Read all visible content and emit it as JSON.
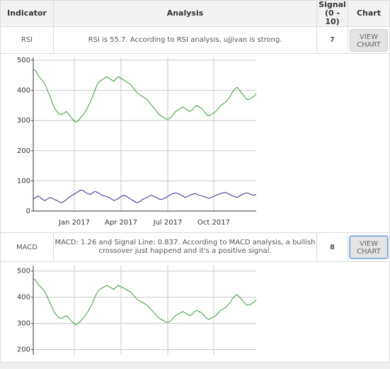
{
  "table": {
    "headers": {
      "indicator": "Indicator",
      "analysis": "Analysis",
      "signal_line1": "Signal",
      "signal_line2": "(0 - 10)",
      "chart": "Chart"
    },
    "rows": [
      {
        "indicator": "RSI",
        "analysis": "RSI is 55.7. According to RSI analysis, ujjivan is strong.",
        "signal": "7",
        "button_label": "VIEW\nCHART"
      },
      {
        "indicator": "MACD",
        "analysis": "MACD: 1.26 and Signal Line: 0.837. According to MACD analysis, a bullish crossover just happend and it's a positive signal.",
        "signal": "8",
        "button_label": "VIEW\nCHART"
      }
    ]
  },
  "chart_data": [
    {
      "type": "line",
      "title": "",
      "xlabel": "",
      "ylabel": "",
      "x_tick_labels": [
        "Jan 2017",
        "Apr 2017",
        "Jul 2017",
        "Oct 2017"
      ],
      "y_tick_labels": [
        "0",
        "100",
        "200",
        "300",
        "400",
        "500"
      ],
      "ylim": [
        0,
        500
      ],
      "grid": true,
      "colors": {
        "price": "#3a9a3a",
        "rsi": "#2b2b8f"
      },
      "series": [
        {
          "values": [
            470,
            465,
            450,
            440,
            430,
            420,
            400,
            380,
            360,
            340,
            330,
            320,
            320,
            325,
            330,
            320,
            310,
            300,
            295,
            300,
            310,
            320,
            330,
            345,
            360,
            380,
            400,
            420,
            430,
            435,
            440,
            445,
            440,
            435,
            430,
            440,
            445,
            440,
            435,
            430,
            425,
            420,
            410,
            400,
            390,
            385,
            380,
            375,
            370,
            360,
            350,
            340,
            330,
            320,
            315,
            310,
            305,
            305,
            310,
            320,
            330,
            335,
            340,
            345,
            340,
            335,
            330,
            335,
            345,
            350,
            345,
            340,
            330,
            320,
            315,
            320,
            325,
            330,
            340,
            350,
            355,
            360,
            370,
            380,
            395,
            405,
            410,
            400,
            390,
            380,
            370,
            370,
            375,
            380,
            390
          ]
        },
        {
          "values": [
            40,
            45,
            50,
            45,
            38,
            35,
            40,
            45,
            42,
            38,
            35,
            30,
            28,
            32,
            38,
            45,
            50,
            55,
            60,
            65,
            70,
            68,
            62,
            58,
            55,
            60,
            65,
            62,
            58,
            52,
            50,
            48,
            45,
            40,
            35,
            38,
            42,
            48,
            52,
            50,
            45,
            40,
            35,
            30,
            28,
            32,
            38,
            42,
            45,
            50,
            52,
            48,
            45,
            40,
            38,
            42,
            45,
            50,
            55,
            58,
            60,
            58,
            55,
            50,
            45,
            48,
            52,
            55,
            58,
            56,
            52,
            50,
            48,
            45,
            42,
            45,
            48,
            52,
            55,
            58,
            60,
            62,
            58,
            55,
            50,
            48,
            45,
            50,
            55,
            58,
            60,
            58,
            55,
            52,
            55
          ]
        }
      ]
    },
    {
      "type": "line",
      "title": "",
      "xlabel": "",
      "ylabel": "",
      "y_tick_labels": [
        "200",
        "300",
        "400",
        "500"
      ],
      "ylim": [
        180,
        510
      ],
      "grid": true,
      "colors": {
        "price": "#3a9a3a"
      },
      "series": [
        {
          "values": [
            470,
            465,
            450,
            440,
            430,
            420,
            400,
            380,
            360,
            340,
            330,
            320,
            320,
            325,
            330,
            320,
            310,
            300,
            295,
            300,
            310,
            320,
            330,
            345,
            360,
            380,
            400,
            420,
            430,
            435,
            440,
            445,
            440,
            435,
            430,
            440,
            445,
            440,
            435,
            430,
            425,
            420,
            410,
            400,
            390,
            385,
            380,
            375,
            370,
            360,
            350,
            340,
            330,
            320,
            315,
            310,
            305,
            305,
            310,
            320,
            330,
            335,
            340,
            345,
            340,
            335,
            330,
            335,
            345,
            350,
            345,
            340,
            330,
            320,
            315,
            320,
            325,
            330,
            340,
            350,
            355,
            360,
            370,
            380,
            395,
            405,
            410,
            400,
            390,
            380,
            370,
            370,
            375,
            380,
            390
          ]
        }
      ]
    }
  ]
}
